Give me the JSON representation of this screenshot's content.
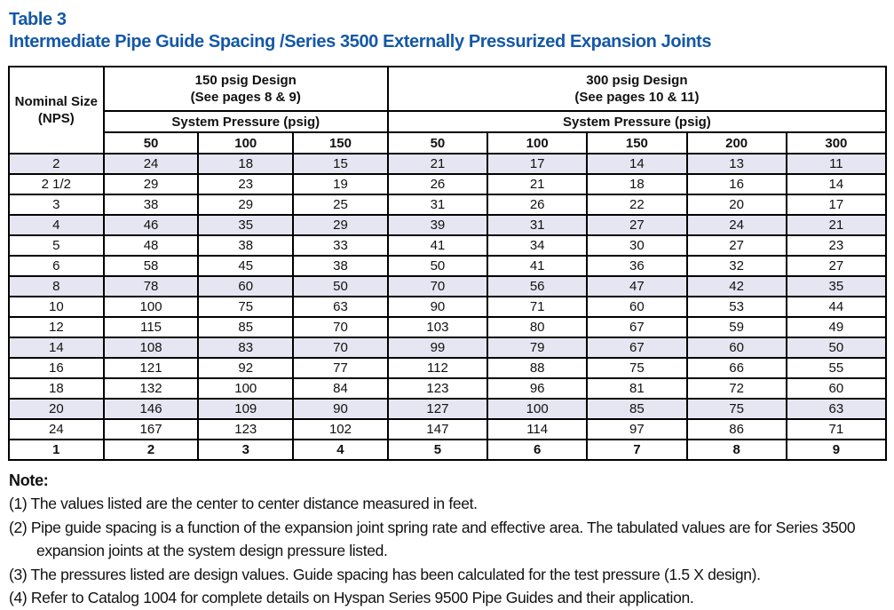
{
  "colors": {
    "accent_blue": "#1458a7",
    "row_shade": "#e6e6f2",
    "border": "#000000"
  },
  "title": {
    "line1": "Table 3",
    "line2": "Intermediate Pipe Guide Spacing /Series 3500 Externally Pressurized Expansion Joints"
  },
  "table": {
    "corner_line1": "Nominal Size",
    "corner_line2": "(NPS)",
    "groups": [
      {
        "title": "150 psig Design",
        "subtitle": "(See pages 8 & 9)",
        "pressure_label": "System Pressure (psig)",
        "columns": [
          "50",
          "100",
          "150"
        ]
      },
      {
        "title": "300 psig Design",
        "subtitle": "(See pages 10 & 11)",
        "pressure_label": "System Pressure (psig)",
        "columns": [
          "50",
          "100",
          "150",
          "200",
          "300"
        ]
      }
    ],
    "rows": [
      {
        "size": "2",
        "values": [
          "24",
          "18",
          "15",
          "21",
          "17",
          "14",
          "13",
          "11"
        ]
      },
      {
        "size": "2 1/2",
        "values": [
          "29",
          "23",
          "19",
          "26",
          "21",
          "18",
          "16",
          "14"
        ]
      },
      {
        "size": "3",
        "values": [
          "38",
          "29",
          "25",
          "31",
          "26",
          "22",
          "20",
          "17"
        ]
      },
      {
        "size": "4",
        "values": [
          "46",
          "35",
          "29",
          "39",
          "31",
          "27",
          "24",
          "21"
        ]
      },
      {
        "size": "5",
        "values": [
          "48",
          "38",
          "33",
          "41",
          "34",
          "30",
          "27",
          "23"
        ]
      },
      {
        "size": "6",
        "values": [
          "58",
          "45",
          "38",
          "50",
          "41",
          "36",
          "32",
          "27"
        ]
      },
      {
        "size": "8",
        "values": [
          "78",
          "60",
          "50",
          "70",
          "56",
          "47",
          "42",
          "35"
        ]
      },
      {
        "size": "10",
        "values": [
          "100",
          "75",
          "63",
          "90",
          "71",
          "60",
          "53",
          "44"
        ]
      },
      {
        "size": "12",
        "values": [
          "115",
          "85",
          "70",
          "103",
          "80",
          "67",
          "59",
          "49"
        ]
      },
      {
        "size": "14",
        "values": [
          "108",
          "83",
          "70",
          "99",
          "79",
          "67",
          "60",
          "50"
        ]
      },
      {
        "size": "16",
        "values": [
          "121",
          "92",
          "77",
          "112",
          "88",
          "75",
          "66",
          "55"
        ]
      },
      {
        "size": "18",
        "values": [
          "132",
          "100",
          "84",
          "123",
          "96",
          "81",
          "72",
          "60"
        ]
      },
      {
        "size": "20",
        "values": [
          "146",
          "109",
          "90",
          "127",
          "100",
          "85",
          "75",
          "63"
        ]
      },
      {
        "size": "24",
        "values": [
          "167",
          "123",
          "102",
          "147",
          "114",
          "97",
          "86",
          "71"
        ]
      }
    ],
    "footer_column_numbers": [
      "1",
      "2",
      "3",
      "4",
      "5",
      "6",
      "7",
      "8",
      "9"
    ]
  },
  "notes": {
    "heading": "Note:",
    "items": [
      "(1) The values listed are the center to center distance measured in feet.",
      "(2) Pipe guide spacing is a function of the expansion joint spring rate and effective area. The tabulated values are for Series 3500 expansion joints at the system design pressure listed.",
      "(3) The pressures listed are design values. Guide spacing has been calculated for the test pressure (1.5 X design).",
      "(4) Refer to Catalog 1004 for complete details on Hyspan Series 9500 Pipe Guides and their application."
    ]
  }
}
